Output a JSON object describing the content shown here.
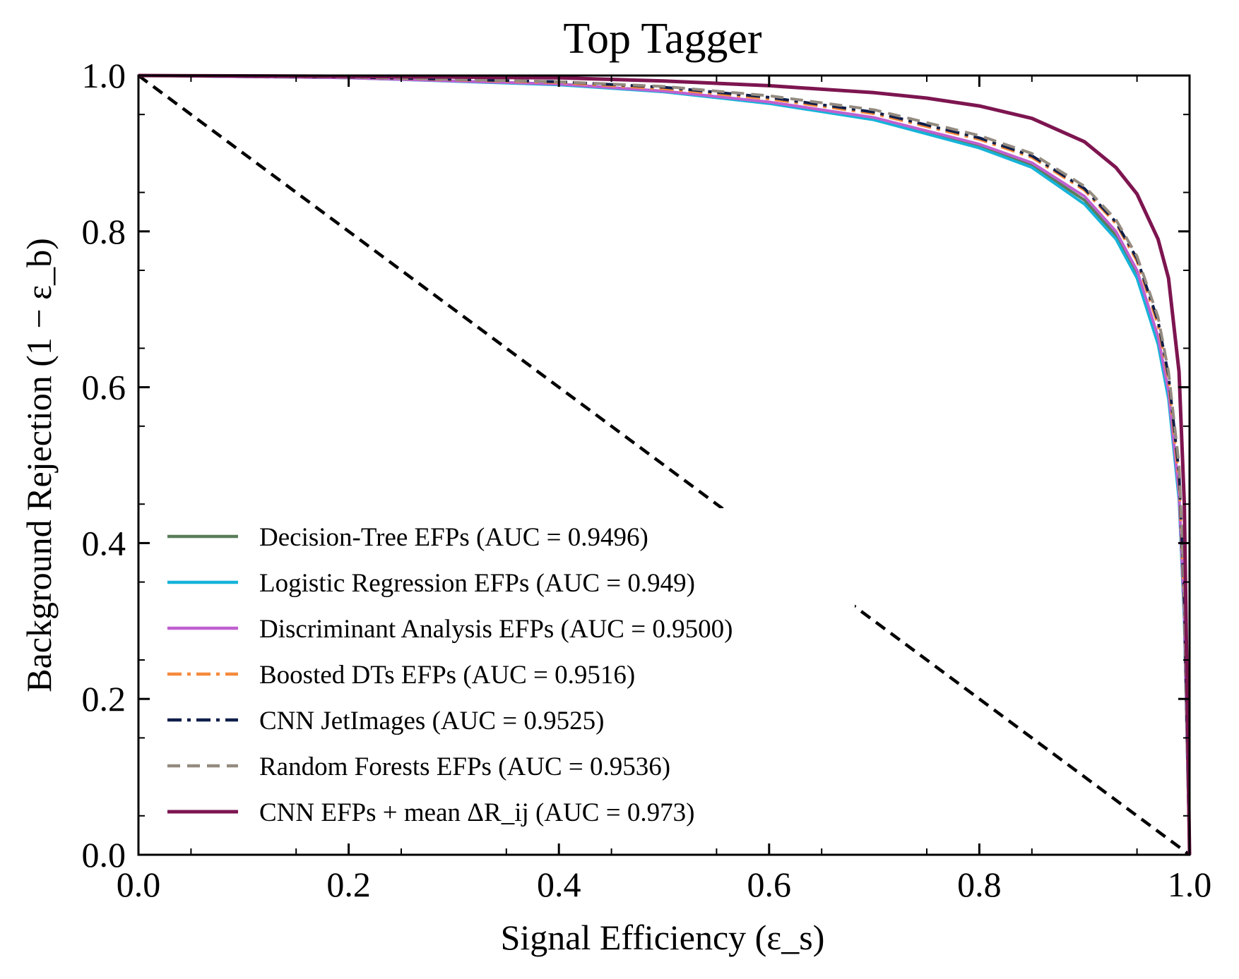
{
  "chart_data": {
    "type": "line",
    "title": "Top Tagger",
    "xlabel": "Signal Efficiency (ε_s)",
    "ylabel": "Background Rejection (1 − ε_b)",
    "xlim": [
      0.0,
      1.0
    ],
    "ylim": [
      0.0,
      1.0
    ],
    "grid": false,
    "legend_position": "lower-left",
    "x_ticks": [
      "0.0",
      "0.2",
      "0.4",
      "0.6",
      "0.8",
      "1.0"
    ],
    "y_ticks": [
      "0.0",
      "0.2",
      "0.4",
      "0.6",
      "0.8",
      "1.0"
    ],
    "random_guess": {
      "x": [
        0.0,
        1.0
      ],
      "y": [
        1.0,
        0.0
      ],
      "color": "#000000",
      "style": "dashed"
    },
    "series": [
      {
        "name": "Decision-Tree EFPs (AUC = 0.9496)",
        "color": "#5a7d5a",
        "style": "solid",
        "x": [
          0.0,
          0.2,
          0.4,
          0.5,
          0.6,
          0.7,
          0.8,
          0.85,
          0.9,
          0.93,
          0.95,
          0.97,
          0.98,
          0.99,
          0.995,
          1.0
        ],
        "y": [
          1.0,
          0.997,
          0.989,
          0.98,
          0.965,
          0.945,
          0.91,
          0.885,
          0.84,
          0.795,
          0.745,
          0.66,
          0.59,
          0.46,
          0.3,
          0.0
        ]
      },
      {
        "name": "Logistic Regression EFPs (AUC = 0.949)",
        "color": "#16b3d9",
        "style": "solid",
        "x": [
          0.0,
          0.2,
          0.4,
          0.5,
          0.6,
          0.7,
          0.8,
          0.85,
          0.9,
          0.93,
          0.95,
          0.97,
          0.98,
          0.99,
          0.995,
          1.0
        ],
        "y": [
          1.0,
          0.997,
          0.988,
          0.979,
          0.964,
          0.943,
          0.907,
          0.882,
          0.835,
          0.79,
          0.74,
          0.655,
          0.585,
          0.455,
          0.3,
          0.0
        ]
      },
      {
        "name": "Discriminant Analysis EFPs (AUC = 0.9500)",
        "color": "#c060d0",
        "style": "solid",
        "x": [
          0.0,
          0.2,
          0.4,
          0.5,
          0.6,
          0.7,
          0.8,
          0.85,
          0.9,
          0.93,
          0.95,
          0.97,
          0.98,
          0.99,
          0.995,
          1.0
        ],
        "y": [
          1.0,
          0.997,
          0.989,
          0.98,
          0.966,
          0.946,
          0.912,
          0.888,
          0.845,
          0.8,
          0.75,
          0.665,
          0.595,
          0.465,
          0.31,
          0.0
        ]
      },
      {
        "name": "Boosted DTs EFPs (AUC = 0.9516)",
        "color": "#f58a3c",
        "style": "dashdot",
        "x": [
          0.0,
          0.2,
          0.4,
          0.5,
          0.6,
          0.7,
          0.8,
          0.85,
          0.9,
          0.93,
          0.95,
          0.97,
          0.98,
          0.99,
          0.995,
          1.0
        ],
        "y": [
          1.0,
          0.998,
          0.991,
          0.983,
          0.97,
          0.951,
          0.918,
          0.895,
          0.853,
          0.81,
          0.762,
          0.68,
          0.61,
          0.48,
          0.32,
          0.0
        ]
      },
      {
        "name": "CNN JetImages (AUC = 0.9525)",
        "color": "#0f1e4a",
        "style": "dashdot",
        "x": [
          0.0,
          0.2,
          0.4,
          0.5,
          0.6,
          0.7,
          0.8,
          0.85,
          0.9,
          0.93,
          0.95,
          0.97,
          0.98,
          0.99,
          0.995,
          1.0
        ],
        "y": [
          1.0,
          0.998,
          0.992,
          0.985,
          0.972,
          0.953,
          0.92,
          0.897,
          0.855,
          0.812,
          0.765,
          0.685,
          0.615,
          0.49,
          0.33,
          0.0
        ]
      },
      {
        "name": "Random Forests EFPs (AUC = 0.9536)",
        "color": "#948b80",
        "style": "dashed",
        "x": [
          0.0,
          0.2,
          0.4,
          0.5,
          0.6,
          0.7,
          0.8,
          0.85,
          0.9,
          0.93,
          0.95,
          0.97,
          0.98,
          0.99,
          0.995,
          1.0
        ],
        "y": [
          1.0,
          0.998,
          0.992,
          0.986,
          0.974,
          0.956,
          0.923,
          0.9,
          0.858,
          0.815,
          0.768,
          0.69,
          0.62,
          0.5,
          0.34,
          0.0
        ]
      },
      {
        "name": "CNN EFPs + mean ΔR_ij (AUC = 0.973)",
        "color": "#7d1550",
        "style": "solid",
        "x": [
          0.0,
          0.2,
          0.4,
          0.5,
          0.6,
          0.7,
          0.75,
          0.8,
          0.85,
          0.9,
          0.93,
          0.95,
          0.97,
          0.98,
          0.99,
          0.995,
          1.0
        ],
        "y": [
          1.0,
          0.999,
          0.997,
          0.993,
          0.987,
          0.978,
          0.971,
          0.961,
          0.945,
          0.915,
          0.882,
          0.848,
          0.79,
          0.74,
          0.62,
          0.45,
          0.0
        ]
      }
    ]
  }
}
